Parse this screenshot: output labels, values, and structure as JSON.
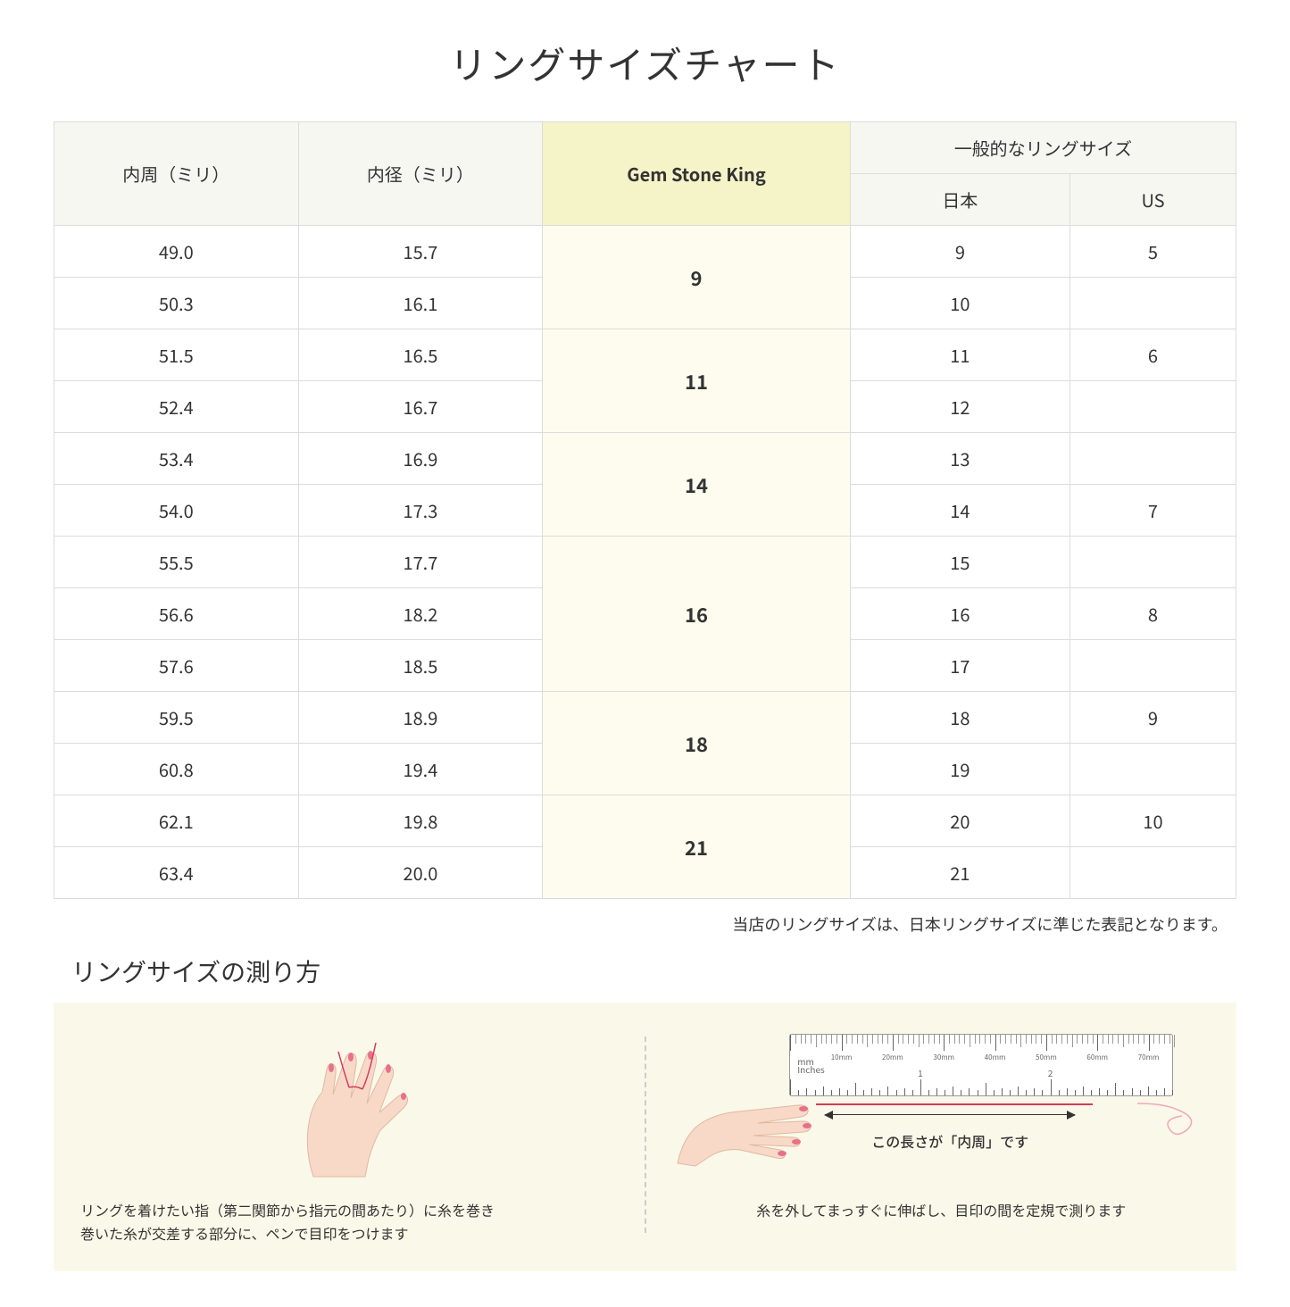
{
  "title": "リングサイズチャート",
  "table": {
    "headers": {
      "circumference": "内周（ミリ）",
      "diameter": "内径（ミリ）",
      "gsk": "Gem Stone King",
      "general": "一般的なリングサイズ",
      "japan": "日本",
      "us": "US"
    },
    "groups": [
      {
        "gsk": "9",
        "rows": [
          {
            "circ": "49.0",
            "diam": "15.7",
            "jp": "9",
            "us": "5"
          },
          {
            "circ": "50.3",
            "diam": "16.1",
            "jp": "10",
            "us": ""
          }
        ]
      },
      {
        "gsk": "11",
        "rows": [
          {
            "circ": "51.5",
            "diam": "16.5",
            "jp": "11",
            "us": "6"
          },
          {
            "circ": "52.4",
            "diam": "16.7",
            "jp": "12",
            "us": ""
          }
        ]
      },
      {
        "gsk": "14",
        "rows": [
          {
            "circ": "53.4",
            "diam": "16.9",
            "jp": "13",
            "us": ""
          },
          {
            "circ": "54.0",
            "diam": "17.3",
            "jp": "14",
            "us": "7"
          }
        ]
      },
      {
        "gsk": "16",
        "rows": [
          {
            "circ": "55.5",
            "diam": "17.7",
            "jp": "15",
            "us": ""
          },
          {
            "circ": "56.6",
            "diam": "18.2",
            "jp": "16",
            "us": "8"
          },
          {
            "circ": "57.6",
            "diam": "18.5",
            "jp": "17",
            "us": ""
          }
        ]
      },
      {
        "gsk": "18",
        "rows": [
          {
            "circ": "59.5",
            "diam": "18.9",
            "jp": "18",
            "us": "9"
          },
          {
            "circ": "60.8",
            "diam": "19.4",
            "jp": "19",
            "us": ""
          }
        ]
      },
      {
        "gsk": "21",
        "rows": [
          {
            "circ": "62.1",
            "diam": "19.8",
            "jp": "20",
            "us": "10"
          },
          {
            "circ": "63.4",
            "diam": "20.0",
            "jp": "21",
            "us": ""
          }
        ]
      }
    ]
  },
  "note": "当店のリングサイズは、日本リングサイズに準じた表記となります。",
  "subtitle": "リングサイズの測り方",
  "instructions": {
    "left": "リングを着けたい指（第二関節から指元の間あたり）に糸を巻き\n巻いた糸が交差する部分に、ペンで目印をつけます",
    "right": "糸を外してまっすぐに伸ばし、目印の間を定規で測ります",
    "measure_label": "この長さが「内周」です",
    "ruler_mm_unit": "mm",
    "ruler_inches_unit": "Inches",
    "ruler_mm_labels": [
      "10mm",
      "20mm",
      "30mm",
      "40mm",
      "50mm",
      "60mm",
      "70mm"
    ],
    "ruler_inch_labels": [
      "1",
      "2"
    ]
  },
  "colors": {
    "header_bg": "#f7f7f2",
    "highlight_header_bg": "#f5f3c8",
    "highlight_cell_bg": "#fdfcef",
    "instruction_bg": "#faf8e8",
    "border": "#dcdcdc",
    "thread": "#d43b5d",
    "skin": "#f8d9c8",
    "nail": "#e8708a"
  }
}
